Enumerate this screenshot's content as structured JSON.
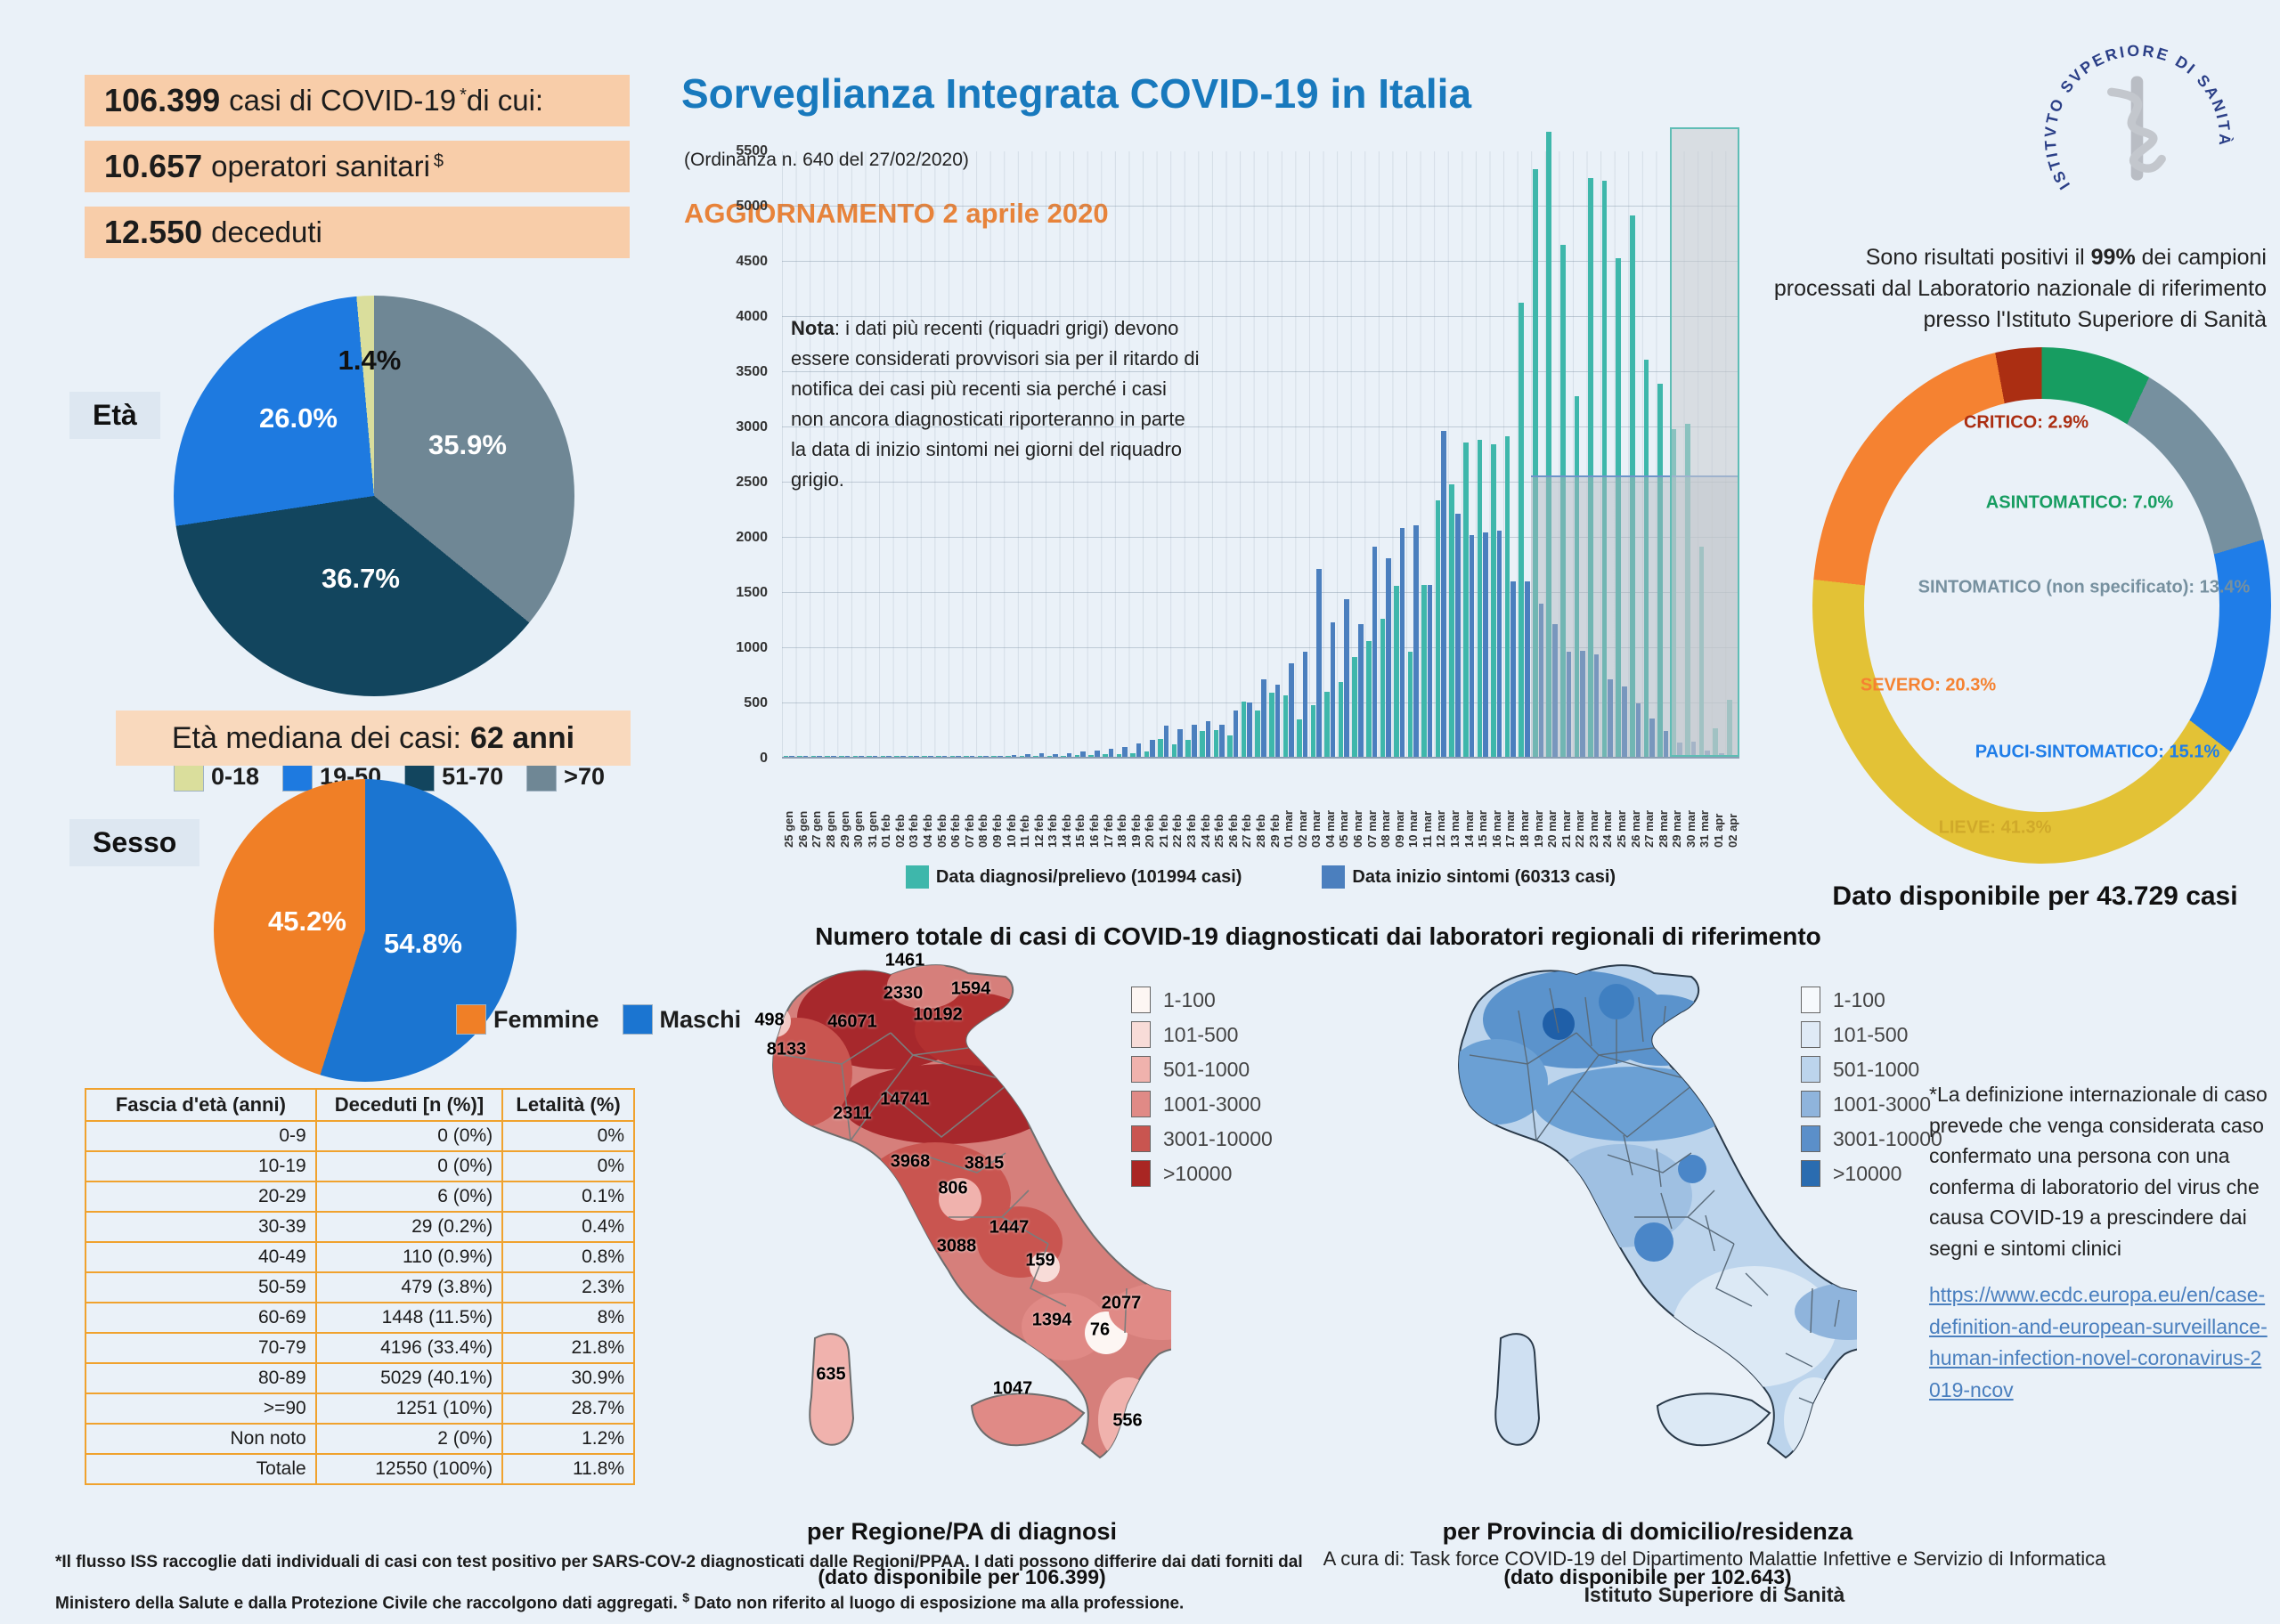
{
  "stats": [
    {
      "num": "106.399",
      "label": "casi di COVID-19",
      "sup": "*",
      "tail": " di cui:"
    },
    {
      "num": "10.657",
      "label": "operatori sanitari",
      "sup": "$",
      "tail": ""
    },
    {
      "num": "12.550",
      "label": "deceduti",
      "sup": "",
      "tail": ""
    }
  ],
  "header": {
    "title": "Sorveglianza Integrata COVID-19 in Italia",
    "ordinance": "(Ordinanza n. 640 del 27/02/2020)",
    "update": "AGGIORNAMENTO 2 aprile 2020",
    "logo_text": "ISTITVTO SVPERIORE DI SANITÀ"
  },
  "age": {
    "section_label": "Età",
    "slices": [
      {
        "label": "0-18",
        "pct": 1.4,
        "color": "#dade9c",
        "display": "1.4%"
      },
      {
        "label": "19-50",
        "pct": 26.0,
        "color": "#1e7ae0",
        "display": "26.0%"
      },
      {
        "label": "51-70",
        "pct": 36.7,
        "color": "#12455e",
        "display": "36.7%"
      },
      {
        "label": ">70",
        "pct": 35.9,
        "color": "#6f8795",
        "display": "35.9%"
      }
    ],
    "median_label": "Età mediana dei casi:",
    "median_value": "62 anni"
  },
  "sex": {
    "section_label": "Sesso",
    "slices": [
      {
        "label": "Femmine",
        "pct": 45.2,
        "color": "#f07f26",
        "display": "45.2%"
      },
      {
        "label": "Maschi",
        "pct": 54.8,
        "color": "#1b75d1",
        "display": "54.8%"
      }
    ]
  },
  "table": {
    "headers": [
      "Fascia d'età (anni)",
      "Deceduti [n (%)]",
      "Letalità (%)"
    ],
    "rows": [
      [
        "0-9",
        "0 (0%)",
        "0%"
      ],
      [
        "10-19",
        "0 (0%)",
        "0%"
      ],
      [
        "20-29",
        "6 (0%)",
        "0.1%"
      ],
      [
        "30-39",
        "29 (0.2%)",
        "0.4%"
      ],
      [
        "40-49",
        "110 (0.9%)",
        "0.8%"
      ],
      [
        "50-59",
        "479 (3.8%)",
        "2.3%"
      ],
      [
        "60-69",
        "1448 (11.5%)",
        "8%"
      ],
      [
        "70-79",
        "4196 (33.4%)",
        "21.8%"
      ],
      [
        "80-89",
        "5029 (40.1%)",
        "30.9%"
      ],
      [
        ">=90",
        "1251 (10%)",
        "28.7%"
      ],
      [
        "Non noto",
        "2 (0%)",
        "1.2%"
      ],
      [
        "Totale",
        "12550 (100%)",
        "11.8%"
      ]
    ]
  },
  "chart_data": {
    "type": "bar",
    "title": "",
    "xlabel": "",
    "ylabel": "",
    "ylim": [
      0,
      5500
    ],
    "y_ticks": [
      0,
      500,
      1000,
      1500,
      2000,
      2500,
      3000,
      3500,
      4000,
      4500,
      5000,
      5500
    ],
    "grid": true,
    "legend_position": "bottom",
    "note_bold": "Nota",
    "note_rest": ": i dati più recenti (riquadri grigi) devono essere considerati provvisori sia per il ritardo di notifica dei casi più recenti sia perché i casi non ancora diagnosticati riporteranno in parte la data di inizio sintomi nei giorni del riquadro grigio.",
    "categories": [
      "25 gen",
      "26 gen",
      "27 gen",
      "28 gen",
      "29 gen",
      "30 gen",
      "31 gen",
      "01 feb",
      "02 feb",
      "03 feb",
      "04 feb",
      "05 feb",
      "06 feb",
      "07 feb",
      "08 feb",
      "09 feb",
      "10 feb",
      "11 feb",
      "12 feb",
      "13 feb",
      "14 feb",
      "15 feb",
      "16 feb",
      "17 feb",
      "18 feb",
      "19 feb",
      "20 feb",
      "21 feb",
      "22 feb",
      "23 feb",
      "24 feb",
      "25 feb",
      "26 feb",
      "27 feb",
      "28 feb",
      "29 feb",
      "01 mar",
      "02 mar",
      "03 mar",
      "04 mar",
      "05 mar",
      "06 mar",
      "07 mar",
      "08 mar",
      "09 mar",
      "10 mar",
      "11 mar",
      "12 mar",
      "13 mar",
      "14 mar",
      "15 mar",
      "16 mar",
      "17 mar",
      "18 mar",
      "19 mar",
      "20 mar",
      "21 mar",
      "22 mar",
      "23 mar",
      "24 mar",
      "25 mar",
      "26 mar",
      "27 mar",
      "28 mar",
      "29 mar",
      "30 mar",
      "31 mar",
      "01 apr",
      "02 apr"
    ],
    "series": [
      {
        "name": "Data diagnosi/prelievo (101994 casi)",
        "color": "#3eb7ab",
        "values": [
          0,
          0,
          0,
          3,
          0,
          2,
          2,
          2,
          1,
          2,
          2,
          3,
          4,
          3,
          2,
          3,
          2,
          5,
          8,
          10,
          12,
          15,
          18,
          22,
          28,
          35,
          45,
          160,
          110,
          150,
          230,
          240,
          190,
          500,
          420,
          580,
          560,
          340,
          470,
          590,
          680,
          900,
          1050,
          1250,
          1550,
          950,
          1560,
          2320,
          2470,
          2850,
          2870,
          2830,
          2900,
          4110,
          5320,
          5660,
          4640,
          3270,
          5240,
          5220,
          4520,
          4900,
          3600,
          3380,
          2970,
          3020,
          1900,
          260,
          520
        ]
      },
      {
        "name": "Data inizio sintomi (60313 casi)",
        "color": "#4b7fbe",
        "values": [
          2,
          1,
          0,
          2,
          1,
          3,
          2,
          8,
          6,
          4,
          5,
          6,
          10,
          9,
          7,
          12,
          15,
          25,
          30,
          28,
          35,
          45,
          60,
          75,
          90,
          120,
          150,
          280,
          250,
          290,
          320,
          290,
          420,
          490,
          700,
          650,
          850,
          950,
          1700,
          1220,
          1430,
          1200,
          1900,
          1800,
          2070,
          2100,
          1560,
          2950,
          2200,
          2010,
          2030,
          2050,
          1590,
          1590,
          1390,
          1200,
          950,
          960,
          930,
          700,
          640,
          480,
          350,
          230,
          130,
          140,
          60,
          30,
          15
        ]
      }
    ],
    "provisional_boxes": [
      {
        "start_category": "19 mar",
        "end_category": "02 apr",
        "top_value": 2550
      },
      {
        "start_category": "29 mar",
        "end_category": "02 apr",
        "top_value": 5700
      }
    ]
  },
  "severity": {
    "intro_a": "Sono risultati positivi il ",
    "intro_bold": "99%",
    "intro_b": " dei campioni processati dal Laboratorio nazionale di riferimento presso l'Istituto Superiore di Sanità",
    "slices": [
      {
        "label": "ASINTOMATICO",
        "pct": "7.0",
        "color": "#179d61"
      },
      {
        "label": "SINTOMATICO (non specificato)",
        "pct": "13.4",
        "color": "#76909f"
      },
      {
        "label": "PAUCI-SINTOMATICO",
        "pct": "15.1",
        "color": "#1f7de8"
      },
      {
        "label": "LIEVE",
        "pct": "41.3",
        "color": "#e3c236"
      },
      {
        "label": "SEVERO",
        "pct": "20.3",
        "color": "#f58231"
      },
      {
        "label": "CRITICO",
        "pct": "2.9",
        "color": "#ab2e12"
      }
    ],
    "footer": "Dato disponibile per 43.729 casi"
  },
  "maps": {
    "title": "Numero totale di casi di COVID-19 diagnosticati dai laboratori regionali di riferimento",
    "legend_classes": [
      "1-100",
      "101-500",
      "501-1000",
      "1001-3000",
      "3001-10000",
      ">10000"
    ],
    "red_swatches": [
      "#fdf6f3",
      "#f8dcd8",
      "#f0b2ad",
      "#e08a86",
      "#c95550",
      "#a92623"
    ],
    "blue_swatches": [
      "#f6f9fc",
      "#dfeaf6",
      "#bcd4ec",
      "#8fb4dc",
      "#5b8fc9",
      "#2a6cb0"
    ],
    "region_values": [
      "498",
      "8133",
      "46071",
      "1461",
      "2330",
      "10192",
      "1594",
      "2311",
      "14741",
      "3968",
      "806",
      "3815",
      "1447",
      "3088",
      "159",
      "1394",
      "2077",
      "76",
      "556",
      "635",
      "1047"
    ],
    "left_caption": "per Regione/PA di diagnosi",
    "left_subcaption": "(dato disponibile per 106.399)",
    "right_caption": "per Provincia di domicilio/residenza",
    "right_subcaption": "(dato disponibile per 102.643)"
  },
  "side_note": {
    "text": "*La definizione internazionale di caso prevede che venga considerata caso confermato una persona con una conferma di laboratorio del virus che causa COVID-19 a prescindere dai segni e sintomi clinici",
    "link": "https://www.ecdc.europa.eu/en/case-definition-and-european-surveillance-human-infection-novel-coronavirus-2019-ncov"
  },
  "footer": {
    "l1": "*Il flusso ISS raccoglie dati individuali di casi con test positivo per SARS-COV-2 diagnosticati dalle Regioni/PPAA. I dati possono differire dai dati forniti dal",
    "l2a": "Ministero della Salute e dalla Protezione Civile che raccolgono dati aggregati. ",
    "l2sup": "$",
    "l2b": " Dato non riferito al luogo di esposizione ma alla professione.",
    "credit1": "A cura di:  Task force  COVID-19 del Dipartimento Malattie Infettive e Servizio di Informatica",
    "credit2": "Istituto Superiore di Sanità"
  }
}
